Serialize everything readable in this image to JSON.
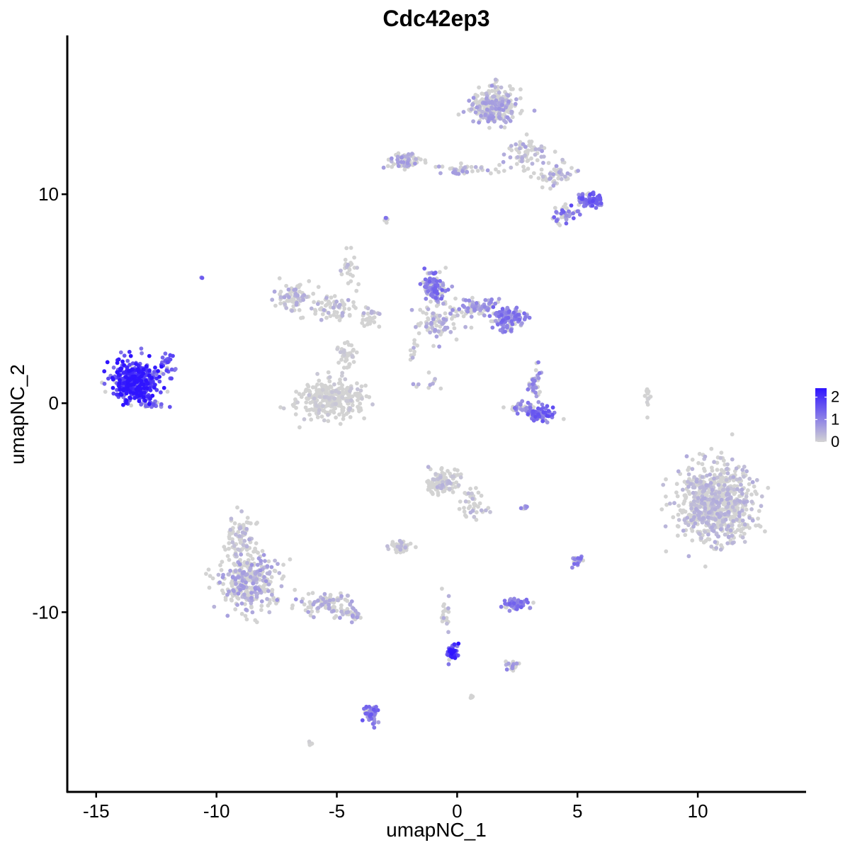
{
  "chart_data": {
    "type": "scatter",
    "title": "Cdc42ep3",
    "xlabel": "umapNC_1",
    "ylabel": "umapNC_2",
    "xlim": [
      -16.2,
      14.5
    ],
    "ylim": [
      -18.6,
      17.6
    ],
    "x_ticks": [
      -15,
      -10,
      -5,
      0,
      5,
      10
    ],
    "y_ticks": [
      -10,
      0,
      10
    ],
    "x_tick_labels": [
      "-15",
      "-10",
      "-5",
      "0",
      "5",
      "10"
    ],
    "y_tick_labels": [
      "-10",
      "0",
      "10"
    ],
    "grid": false,
    "color_scale": {
      "low_color": "#d3d3d3",
      "high_color": "#2f14ff",
      "min": 0,
      "max": 2.4,
      "ticks": [
        0,
        1,
        2
      ],
      "tick_labels": [
        "0",
        "1",
        "2"
      ],
      "legend_placement": "right"
    },
    "clusters": [
      {
        "center": [
          -13.4,
          1.0
        ],
        "spread": [
          0.85,
          0.9
        ],
        "n": 420,
        "mean_expr": 1.9
      },
      {
        "center": [
          -12.0,
          1.8
        ],
        "spread": [
          0.3,
          0.6
        ],
        "n": 25,
        "mean_expr": 1.3
      },
      {
        "center": [
          -12.5,
          -0.1
        ],
        "spread": [
          0.5,
          0.15
        ],
        "n": 20,
        "mean_expr": 1.2
      },
      {
        "center": [
          -10.6,
          6.0
        ],
        "spread": [
          0.05,
          0.05
        ],
        "n": 3,
        "mean_expr": 1.2
      },
      {
        "center": [
          1.5,
          14.2
        ],
        "spread": [
          0.8,
          0.8
        ],
        "n": 260,
        "mean_expr": 0.55
      },
      {
        "center": [
          2.8,
          12.0
        ],
        "spread": [
          0.7,
          0.7
        ],
        "n": 70,
        "mean_expr": 0.45
      },
      {
        "center": [
          -2.1,
          11.6
        ],
        "spread": [
          0.7,
          0.35
        ],
        "n": 70,
        "mean_expr": 0.55
      },
      {
        "center": [
          0.3,
          11.2
        ],
        "spread": [
          1.2,
          0.2
        ],
        "n": 40,
        "mean_expr": 0.5
      },
      {
        "center": [
          4.2,
          11.0
        ],
        "spread": [
          0.7,
          0.6
        ],
        "n": 60,
        "mean_expr": 0.5
      },
      {
        "center": [
          5.5,
          9.7
        ],
        "spread": [
          0.5,
          0.35
        ],
        "n": 70,
        "mean_expr": 1.2
      },
      {
        "center": [
          4.5,
          9.0
        ],
        "spread": [
          0.4,
          0.35
        ],
        "n": 40,
        "mean_expr": 1.0
      },
      {
        "center": [
          -3.0,
          8.8
        ],
        "spread": [
          0.1,
          0.15
        ],
        "n": 6,
        "mean_expr": 1.0
      },
      {
        "center": [
          -6.8,
          5.1
        ],
        "spread": [
          0.6,
          0.6
        ],
        "n": 90,
        "mean_expr": 0.4
      },
      {
        "center": [
          -5.2,
          4.6
        ],
        "spread": [
          1.0,
          0.6
        ],
        "n": 70,
        "mean_expr": 0.35
      },
      {
        "center": [
          -4.5,
          6.5
        ],
        "spread": [
          0.3,
          0.9
        ],
        "n": 25,
        "mean_expr": 0.3
      },
      {
        "center": [
          -3.6,
          4.1
        ],
        "spread": [
          0.4,
          0.5
        ],
        "n": 25,
        "mean_expr": 0.3
      },
      {
        "center": [
          -5.2,
          0.2
        ],
        "spread": [
          1.2,
          0.8
        ],
        "n": 280,
        "mean_expr": 0.15
      },
      {
        "center": [
          -4.6,
          2.2
        ],
        "spread": [
          0.35,
          0.8
        ],
        "n": 40,
        "mean_expr": 0.15
      },
      {
        "center": [
          -1.0,
          5.6
        ],
        "spread": [
          0.5,
          0.6
        ],
        "n": 110,
        "mean_expr": 1.0
      },
      {
        "center": [
          -0.8,
          3.8
        ],
        "spread": [
          0.8,
          0.8
        ],
        "n": 90,
        "mean_expr": 0.5
      },
      {
        "center": [
          0.8,
          4.6
        ],
        "spread": [
          0.9,
          0.4
        ],
        "n": 80,
        "mean_expr": 0.7
      },
      {
        "center": [
          2.1,
          4.0
        ],
        "spread": [
          0.6,
          0.5
        ],
        "n": 110,
        "mean_expr": 1.0
      },
      {
        "center": [
          -1.8,
          2.6
        ],
        "spread": [
          0.2,
          0.6
        ],
        "n": 10,
        "mean_expr": 0.4
      },
      {
        "center": [
          -1.2,
          1.0
        ],
        "spread": [
          0.5,
          0.5
        ],
        "n": 10,
        "mean_expr": 0.5
      },
      {
        "center": [
          3.4,
          -0.5
        ],
        "spread": [
          0.5,
          0.35
        ],
        "n": 70,
        "mean_expr": 1.2
      },
      {
        "center": [
          2.7,
          -0.2
        ],
        "spread": [
          0.6,
          0.25
        ],
        "n": 30,
        "mean_expr": 0.9
      },
      {
        "center": [
          3.2,
          0.8
        ],
        "spread": [
          0.25,
          0.7
        ],
        "n": 35,
        "mean_expr": 0.8
      },
      {
        "center": [
          7.9,
          0.3
        ],
        "spread": [
          0.1,
          0.5
        ],
        "n": 14,
        "mean_expr": 0.05
      },
      {
        "center": [
          10.8,
          -4.8
        ],
        "spread": [
          1.4,
          1.7
        ],
        "n": 780,
        "mean_expr": 0.35
      },
      {
        "center": [
          -0.6,
          -3.8
        ],
        "spread": [
          0.6,
          0.5
        ],
        "n": 110,
        "mean_expr": 0.3
      },
      {
        "center": [
          0.7,
          -4.8
        ],
        "spread": [
          0.6,
          0.7
        ],
        "n": 40,
        "mean_expr": 0.3
      },
      {
        "center": [
          2.8,
          -5.0
        ],
        "spread": [
          0.15,
          0.1
        ],
        "n": 8,
        "mean_expr": 0.9
      },
      {
        "center": [
          -2.4,
          -6.9
        ],
        "spread": [
          0.4,
          0.25
        ],
        "n": 45,
        "mean_expr": 0.3
      },
      {
        "center": [
          -8.7,
          -8.6
        ],
        "spread": [
          1.1,
          1.2
        ],
        "n": 320,
        "mean_expr": 0.55
      },
      {
        "center": [
          -9.0,
          -6.4
        ],
        "spread": [
          0.5,
          1.0
        ],
        "n": 80,
        "mean_expr": 0.3
      },
      {
        "center": [
          -5.5,
          -9.6
        ],
        "spread": [
          1.1,
          0.5
        ],
        "n": 90,
        "mean_expr": 0.45
      },
      {
        "center": [
          -4.4,
          -10.1
        ],
        "spread": [
          0.4,
          0.25
        ],
        "n": 35,
        "mean_expr": 0.5
      },
      {
        "center": [
          5.0,
          -7.5
        ],
        "spread": [
          0.2,
          0.25
        ],
        "n": 20,
        "mean_expr": 0.9
      },
      {
        "center": [
          2.4,
          -9.6
        ],
        "spread": [
          0.45,
          0.25
        ],
        "n": 70,
        "mean_expr": 1.0
      },
      {
        "center": [
          -0.2,
          -11.9
        ],
        "spread": [
          0.2,
          0.3
        ],
        "n": 55,
        "mean_expr": 1.7
      },
      {
        "center": [
          -0.5,
          -10.0
        ],
        "spread": [
          0.2,
          0.7
        ],
        "n": 20,
        "mean_expr": 0.4
      },
      {
        "center": [
          2.3,
          -12.6
        ],
        "spread": [
          0.25,
          0.2
        ],
        "n": 20,
        "mean_expr": 0.7
      },
      {
        "center": [
          -3.5,
          -14.8
        ],
        "spread": [
          0.3,
          0.5
        ],
        "n": 45,
        "mean_expr": 1.1
      },
      {
        "center": [
          -6.1,
          -16.3
        ],
        "spread": [
          0.1,
          0.08
        ],
        "n": 6,
        "mean_expr": 0.1
      },
      {
        "center": [
          0.6,
          -14.1
        ],
        "spread": [
          0.1,
          0.08
        ],
        "n": 5,
        "mean_expr": 0.1
      }
    ]
  }
}
